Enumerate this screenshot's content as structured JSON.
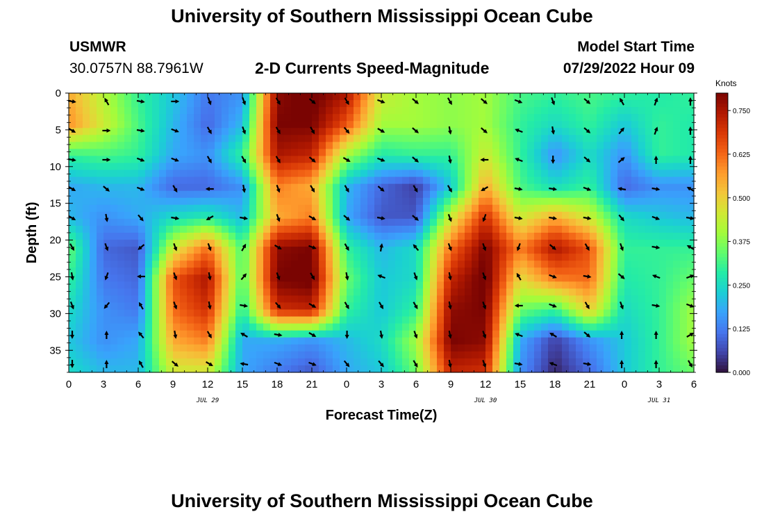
{
  "page": {
    "title": "University of Southern Mississippi Ocean Cube",
    "title_bottom": "University of Southern Mississippi Ocean Cube",
    "station": "USMWR",
    "coords": "30.0757N  88.7961W",
    "subtitle": "2-D Currents Speed-Magnitude",
    "model_label": "Model Start Time",
    "model_time": "07/29/2022 Hour 09"
  },
  "chart_data": {
    "type": "heatmap",
    "title": "2-D Currents Speed-Magnitude",
    "xlabel": "Forecast Time(Z)",
    "ylabel": "Depth (ft)",
    "x_ticks": [
      "0",
      "3",
      "6",
      "9",
      "12",
      "15",
      "18",
      "21",
      "0",
      "3",
      "6",
      "9",
      "12",
      "15",
      "18",
      "21",
      "0",
      "3",
      "6"
    ],
    "x_range_hours": [
      0,
      54
    ],
    "y_ticks": [
      0,
      5,
      10,
      15,
      20,
      25,
      30,
      35
    ],
    "y_range_ft": [
      0,
      38
    ],
    "date_labels": [
      {
        "text": "JUL 29",
        "hour": 12
      },
      {
        "text": "JUL 30",
        "hour": 36
      },
      {
        "text": "JUL 31",
        "hour": 51
      }
    ],
    "colorbar": {
      "unit": "Knots",
      "min": 0.0,
      "max": 0.8,
      "ticks": [
        "0.000",
        "0.125",
        "0.250",
        "0.375",
        "0.500",
        "0.625",
        "0.750"
      ],
      "colors": [
        "#30123b",
        "#4145ab",
        "#4675ed",
        "#39a2fc",
        "#1bcfd4",
        "#24eca6",
        "#61fc6c",
        "#a4fc3b",
        "#d1e834",
        "#f3c63a",
        "#fe9b2d",
        "#f36315",
        "#d93806",
        "#b11901",
        "#7a0402"
      ]
    },
    "speed_grid_knots": [
      [
        0.55,
        0.42,
        0.3,
        0.22,
        0.12,
        0.15,
        0.78,
        0.82,
        0.75,
        0.45,
        0.4,
        0.38,
        0.4,
        0.32,
        0.3,
        0.32,
        0.3,
        0.28,
        0.3
      ],
      [
        0.58,
        0.45,
        0.32,
        0.2,
        0.1,
        0.2,
        0.8,
        0.8,
        0.65,
        0.4,
        0.4,
        0.38,
        0.4,
        0.3,
        0.25,
        0.3,
        0.22,
        0.3,
        0.28
      ],
      [
        0.3,
        0.32,
        0.3,
        0.18,
        0.15,
        0.3,
        0.75,
        0.72,
        0.4,
        0.28,
        0.3,
        0.3,
        0.45,
        0.3,
        0.15,
        0.25,
        0.15,
        0.3,
        0.28
      ],
      [
        0.18,
        0.2,
        0.2,
        0.1,
        0.1,
        0.15,
        0.6,
        0.55,
        0.2,
        0.1,
        0.05,
        0.22,
        0.55,
        0.32,
        0.25,
        0.3,
        0.1,
        0.15,
        0.15
      ],
      [
        0.2,
        0.15,
        0.18,
        0.25,
        0.28,
        0.2,
        0.55,
        0.6,
        0.18,
        0.08,
        0.08,
        0.45,
        0.7,
        0.45,
        0.55,
        0.45,
        0.25,
        0.22,
        0.2
      ],
      [
        0.35,
        0.1,
        0.08,
        0.45,
        0.62,
        0.32,
        0.78,
        0.8,
        0.3,
        0.2,
        0.25,
        0.62,
        0.8,
        0.6,
        0.75,
        0.65,
        0.3,
        0.3,
        0.3
      ],
      [
        0.3,
        0.12,
        0.1,
        0.65,
        0.75,
        0.32,
        0.8,
        0.82,
        0.35,
        0.22,
        0.25,
        0.72,
        0.82,
        0.48,
        0.6,
        0.62,
        0.28,
        0.3,
        0.35
      ],
      [
        0.25,
        0.15,
        0.12,
        0.62,
        0.7,
        0.28,
        0.7,
        0.72,
        0.3,
        0.22,
        0.3,
        0.78,
        0.8,
        0.35,
        0.3,
        0.5,
        0.25,
        0.3,
        0.4
      ],
      [
        0.22,
        0.15,
        0.18,
        0.55,
        0.6,
        0.18,
        0.18,
        0.15,
        0.2,
        0.25,
        0.4,
        0.8,
        0.78,
        0.18,
        0.05,
        0.15,
        0.22,
        0.3,
        0.4
      ],
      [
        0.25,
        0.2,
        0.2,
        0.45,
        0.45,
        0.18,
        0.12,
        0.08,
        0.18,
        0.22,
        0.35,
        0.72,
        0.7,
        0.15,
        0.02,
        0.1,
        0.22,
        0.3,
        0.35
      ]
    ],
    "vectors_grid_deg": [
      [
        100,
        330,
        100,
        90,
        160,
        160,
        150,
        130,
        150,
        110,
        130,
        150,
        130,
        110,
        160,
        130,
        330,
        20,
        0
      ],
      [
        120,
        90,
        100,
        110,
        150,
        160,
        150,
        150,
        140,
        120,
        130,
        170,
        130,
        290,
        170,
        130,
        40,
        20,
        0
      ],
      [
        100,
        90,
        110,
        110,
        150,
        150,
        150,
        130,
        120,
        110,
        130,
        170,
        270,
        290,
        180,
        130,
        50,
        0,
        0
      ],
      [
        120,
        130,
        110,
        150,
        270,
        170,
        160,
        150,
        150,
        130,
        150,
        150,
        240,
        100,
        100,
        110,
        280,
        100,
        300
      ],
      [
        120,
        170,
        140,
        100,
        240,
        100,
        160,
        120,
        130,
        100,
        130,
        160,
        200,
        100,
        100,
        100,
        140,
        110,
        100
      ],
      [
        150,
        160,
        230,
        160,
        160,
        30,
        120,
        110,
        150,
        10,
        320,
        160,
        160,
        200,
        130,
        150,
        160,
        100,
        300
      ],
      [
        170,
        200,
        270,
        160,
        170,
        40,
        160,
        150,
        170,
        290,
        160,
        170,
        160,
        330,
        110,
        100,
        130,
        290,
        70
      ],
      [
        160,
        220,
        330,
        160,
        170,
        100,
        140,
        120,
        150,
        150,
        150,
        170,
        160,
        270,
        110,
        150,
        160,
        100,
        110
      ],
      [
        180,
        0,
        320,
        170,
        150,
        300,
        100,
        120,
        180,
        170,
        160,
        170,
        160,
        290,
        300,
        130,
        0,
        0,
        60
      ],
      [
        180,
        0,
        330,
        130,
        120,
        280,
        110,
        110,
        140,
        140,
        150,
        170,
        160,
        100,
        290,
        100,
        0,
        0,
        150
      ]
    ]
  }
}
